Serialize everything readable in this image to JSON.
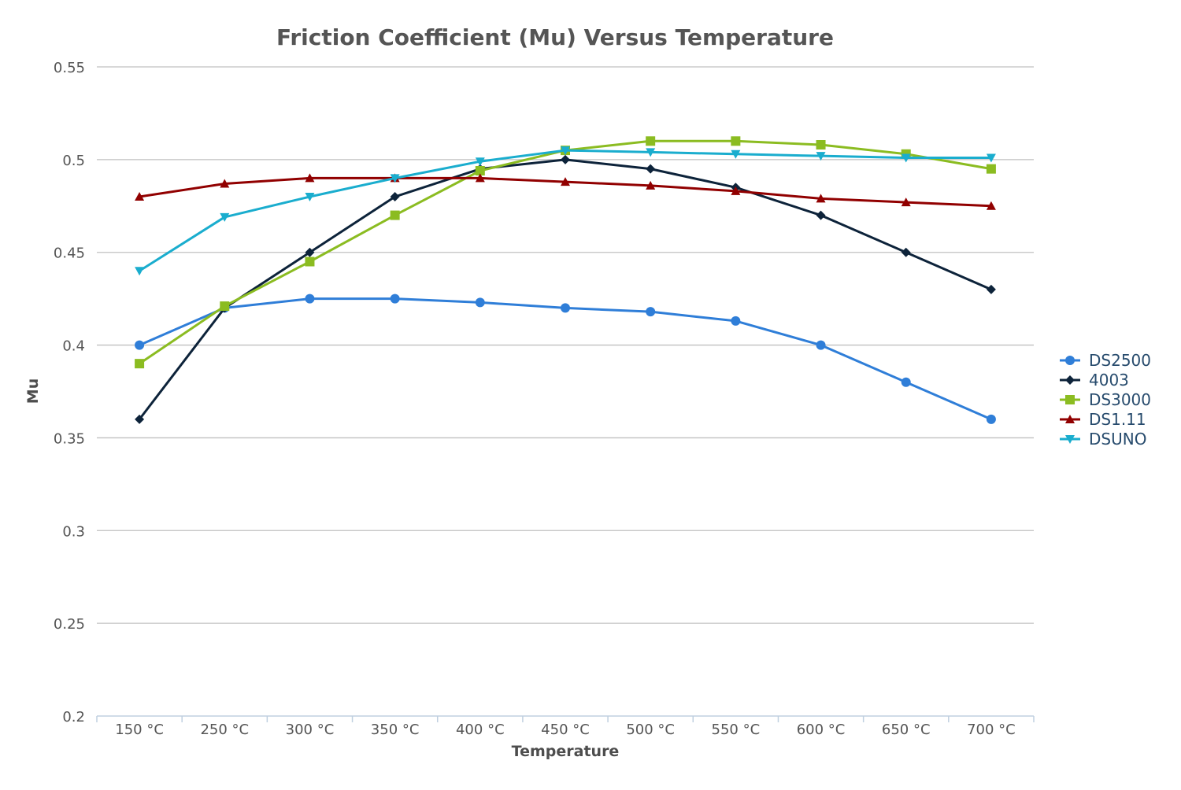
{
  "chart_data": {
    "type": "line",
    "title": "Friction Coefficient (Mu) Versus Temperature",
    "xlabel": "Temperature",
    "ylabel": "Mu",
    "categories": [
      "150 °C",
      "250 °C",
      "300 °C",
      "350 °C",
      "400 °C",
      "450 °C",
      "500 °C",
      "550 °C",
      "600 °C",
      "650 °C",
      "700 °C"
    ],
    "ylim": [
      0.2,
      0.55
    ],
    "yticks": [
      0.2,
      0.25,
      0.3,
      0.35,
      0.4,
      0.45,
      0.5,
      0.55
    ],
    "ytick_labels": [
      "0.2",
      "0.25",
      "0.3",
      "0.35",
      "0.4",
      "0.45",
      "0.5",
      "0.55"
    ],
    "grid": true,
    "legend_position": "right",
    "series": [
      {
        "name": "DS2500",
        "color": "#2f7ed8",
        "marker": "circle",
        "values": [
          0.4,
          0.42,
          0.425,
          0.425,
          0.423,
          0.42,
          0.418,
          0.413,
          0.4,
          0.38,
          0.36
        ]
      },
      {
        "name": "4003",
        "color": "#0d233a",
        "marker": "diamond",
        "values": [
          0.36,
          0.42,
          0.45,
          0.48,
          0.495,
          0.5,
          0.495,
          0.485,
          0.47,
          0.45,
          0.43
        ]
      },
      {
        "name": "DS3000",
        "color": "#8bbc21",
        "marker": "square",
        "values": [
          0.39,
          0.421,
          0.445,
          0.47,
          0.494,
          0.505,
          0.51,
          0.51,
          0.508,
          0.503,
          0.495
        ]
      },
      {
        "name": "DS1.11",
        "color": "#910000",
        "marker": "triangle",
        "values": [
          0.48,
          0.487,
          0.49,
          0.49,
          0.49,
          0.488,
          0.486,
          0.483,
          0.479,
          0.477,
          0.475
        ]
      },
      {
        "name": "DSUNO",
        "color": "#1aadce",
        "marker": "triangle-down",
        "values": [
          0.44,
          0.469,
          0.48,
          0.49,
          0.499,
          0.505,
          0.504,
          0.503,
          0.502,
          0.501,
          0.501
        ]
      }
    ]
  }
}
